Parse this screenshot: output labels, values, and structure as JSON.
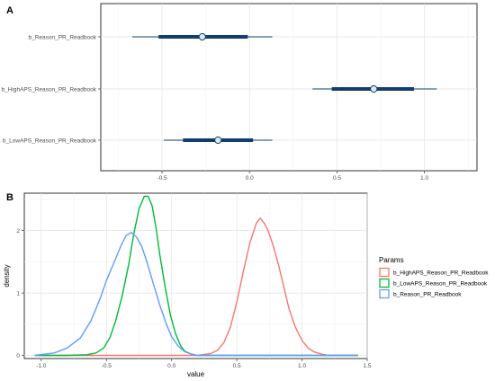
{
  "figure": {
    "panel_a_tag": "A",
    "panel_b_tag": "B"
  },
  "chart_data": [
    {
      "type": "interval",
      "panel": "A",
      "title": "",
      "xlabel": "",
      "ylabel": "",
      "xlim": [
        -0.85,
        1.3
      ],
      "xticks": [
        -0.5,
        0.0,
        0.5,
        1.0
      ],
      "xtick_labels": [
        "-0.5",
        "0.0",
        "0.5",
        "1.0"
      ],
      "grid": true,
      "parameters": [
        {
          "label": "b_Reason_PR_Readbook",
          "median": -0.27,
          "inner": [
            -0.52,
            -0.01
          ],
          "outer": [
            -0.67,
            0.13
          ]
        },
        {
          "label": "b_HighAPS_Reason_PR_Readbook",
          "median": 0.71,
          "inner": [
            0.47,
            0.94
          ],
          "outer": [
            0.36,
            1.07
          ]
        },
        {
          "label": "b_LowAPS_Reason_PR_Readbook",
          "median": -0.18,
          "inner": [
            -0.38,
            0.02
          ],
          "outer": [
            -0.49,
            0.13
          ]
        }
      ],
      "colors": {
        "line": "#0f3f6e",
        "point_fill": "#dfe6f0"
      }
    },
    {
      "type": "line",
      "panel": "B",
      "title": "",
      "xlabel": "value",
      "ylabel": "density",
      "xlim": [
        -1.13,
        1.5
      ],
      "ylim": [
        -0.05,
        2.6
      ],
      "xticks": [
        -1.0,
        -0.5,
        0.0,
        0.5,
        1.0,
        1.5
      ],
      "xtick_labels": [
        "-1.0",
        "-0.5",
        "0.0",
        "0.5",
        "1.0",
        "1.5"
      ],
      "yticks": [
        0,
        1,
        2
      ],
      "ytick_labels": [
        "0",
        "1",
        "2"
      ],
      "grid": true,
      "legend": {
        "title": "Params",
        "position": "right"
      },
      "series": [
        {
          "name": "b_HighAPS_Reason_PR_Readbook",
          "color": "#f8766d",
          "x": [
            -1.05,
            0.2,
            0.3,
            0.35,
            0.4,
            0.45,
            0.5,
            0.55,
            0.6,
            0.65,
            0.68,
            0.71,
            0.74,
            0.78,
            0.82,
            0.86,
            0.9,
            0.95,
            1.0,
            1.05,
            1.1,
            1.15,
            1.2,
            1.3,
            1.43
          ],
          "y": [
            0.0,
            0.0,
            0.03,
            0.08,
            0.2,
            0.45,
            0.85,
            1.35,
            1.8,
            2.12,
            2.2,
            2.12,
            2.0,
            1.75,
            1.45,
            1.1,
            0.75,
            0.45,
            0.24,
            0.11,
            0.05,
            0.02,
            0.0,
            0.0,
            0.0
          ]
        },
        {
          "name": "b_LowAPS_Reason_PR_Readbook",
          "color": "#00ba38",
          "x": [
            -1.05,
            -0.8,
            -0.65,
            -0.58,
            -0.52,
            -0.47,
            -0.43,
            -0.38,
            -0.33,
            -0.29,
            -0.25,
            -0.21,
            -0.18,
            -0.15,
            -0.12,
            -0.09,
            -0.05,
            -0.01,
            0.03,
            0.07,
            0.1,
            0.15,
            0.2,
            0.3,
            1.43
          ],
          "y": [
            0.0,
            0.0,
            0.01,
            0.04,
            0.12,
            0.3,
            0.55,
            0.95,
            1.45,
            1.95,
            2.35,
            2.55,
            2.55,
            2.4,
            2.05,
            1.6,
            1.1,
            0.65,
            0.35,
            0.15,
            0.07,
            0.02,
            0.0,
            0.0,
            0.0
          ]
        },
        {
          "name": "b_Reason_PR_Readbook",
          "color": "#619cff",
          "x": [
            -1.05,
            -0.9,
            -0.8,
            -0.7,
            -0.62,
            -0.55,
            -0.5,
            -0.44,
            -0.39,
            -0.35,
            -0.31,
            -0.27,
            -0.23,
            -0.19,
            -0.14,
            -0.09,
            -0.04,
            0.0,
            0.05,
            0.1,
            0.15,
            0.2,
            0.3,
            0.45,
            1.43
          ],
          "y": [
            0.0,
            0.04,
            0.12,
            0.28,
            0.55,
            0.9,
            1.2,
            1.5,
            1.75,
            1.92,
            1.97,
            1.9,
            1.75,
            1.5,
            1.15,
            0.8,
            0.5,
            0.3,
            0.15,
            0.06,
            0.02,
            0.0,
            0.0,
            0.0,
            0.0
          ]
        }
      ]
    }
  ]
}
